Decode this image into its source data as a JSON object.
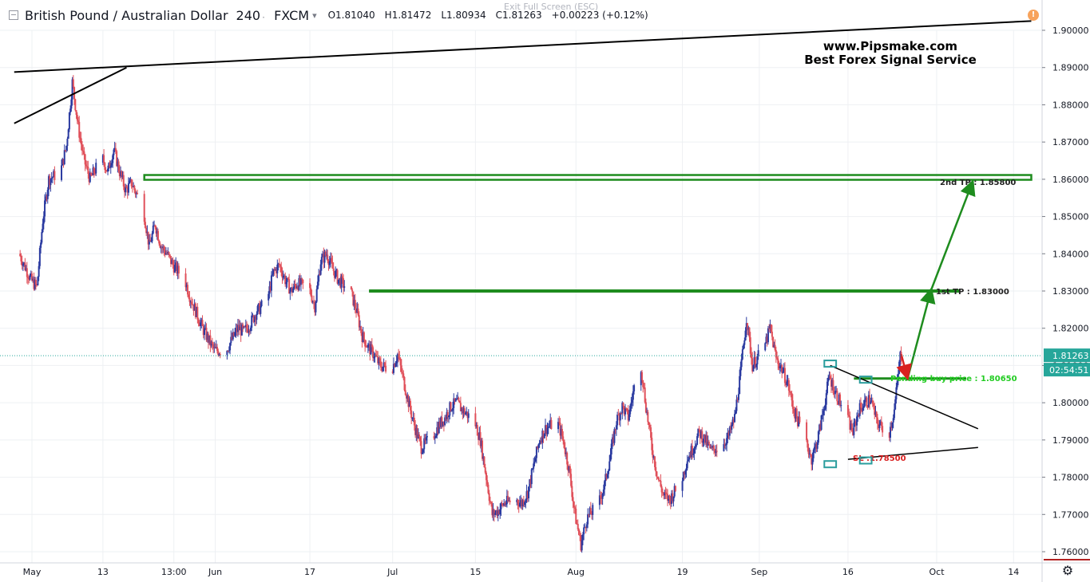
{
  "header": {
    "symbol": "British Pound / Australian Dollar",
    "interval": "240",
    "source": "FXCM",
    "open_label": "O",
    "open": "1.81040",
    "high_label": "H",
    "high": "1.81472",
    "low_label": "L",
    "low": "1.80934",
    "close_label": "C",
    "close": "1.81263",
    "change": "+0.00223 (+0.12%)",
    "exit_full_screen": "Exit Full Screen (ESC)",
    "alert": "!"
  },
  "watermark": {
    "line1": "www.Pipsmake.com",
    "line2": "Best Forex Signal Service"
  },
  "price_axis": {
    "ticks": [
      "1.90000",
      "1.89000",
      "1.88000",
      "1.87000",
      "1.86000",
      "1.85000",
      "1.84000",
      "1.83000",
      "1.82000",
      "1.81000",
      "1.80000",
      "1.79000",
      "1.78000",
      "1.77000",
      "1.76000"
    ],
    "current_price": "1.81263",
    "countdown": "02:54:51"
  },
  "time_axis": {
    "labels": [
      "May",
      "13",
      "13:00",
      "Jun",
      "17",
      "Jul",
      "15",
      "Aug",
      "19",
      "Sep",
      "16",
      "Oct",
      "14"
    ]
  },
  "colors": {
    "up_candle": "#2a3aa0",
    "down_candle": "#e0505a",
    "tp_line": "#1e8c1e",
    "trend_line": "#000000",
    "sl_text": "#d92020",
    "pending_text": "#22cc22",
    "box": "#2a9d9d",
    "price_label_bg": "#26a69a",
    "countdown_bg": "#26a69a",
    "current_price_line": "#26a69a"
  },
  "chart_data": {
    "type": "candlestick",
    "title": "British Pound / Australian Dollar",
    "interval": "240",
    "ylim": [
      1.755,
      1.9075
    ],
    "x_range": [
      "2018-04-28",
      "2018-10-18"
    ],
    "series_path": [
      [
        "2018-04-29",
        1.84
      ],
      [
        "2018-05-01",
        1.833
      ],
      [
        "2018-05-02",
        1.831
      ],
      [
        "2018-05-03",
        1.849
      ],
      [
        "2018-05-04",
        1.86
      ],
      [
        "2018-05-06",
        1.862
      ],
      [
        "2018-05-07",
        1.869
      ],
      [
        "2018-05-08",
        1.886
      ],
      [
        "2018-05-09",
        1.874
      ],
      [
        "2018-05-10",
        1.865
      ],
      [
        "2018-05-11",
        1.86
      ],
      [
        "2018-05-13",
        1.866
      ],
      [
        "2018-05-14",
        1.862
      ],
      [
        "2018-05-15",
        1.868
      ],
      [
        "2018-05-16",
        1.862
      ],
      [
        "2018-05-17",
        1.857
      ],
      [
        "2018-05-18",
        1.859
      ],
      [
        "2018-05-20",
        1.852
      ],
      [
        "2018-05-21",
        1.842
      ],
      [
        "2018-05-22",
        1.848
      ],
      [
        "2018-05-23",
        1.842
      ],
      [
        "2018-05-24",
        1.84
      ],
      [
        "2018-05-25",
        1.837
      ],
      [
        "2018-05-27",
        1.833
      ],
      [
        "2018-05-28",
        1.828
      ],
      [
        "2018-05-29",
        1.824
      ],
      [
        "2018-05-30",
        1.82
      ],
      [
        "2018-05-31",
        1.817
      ],
      [
        "2018-06-01",
        1.814
      ],
      [
        "2018-06-03",
        1.814
      ],
      [
        "2018-06-04",
        1.817
      ],
      [
        "2018-06-05",
        1.82
      ],
      [
        "2018-06-06",
        1.819
      ],
      [
        "2018-06-07",
        1.821
      ],
      [
        "2018-06-08",
        1.824
      ],
      [
        "2018-06-10",
        1.828
      ],
      [
        "2018-06-11",
        1.835
      ],
      [
        "2018-06-12",
        1.837
      ],
      [
        "2018-06-13",
        1.833
      ],
      [
        "2018-06-14",
        1.83
      ],
      [
        "2018-06-15",
        1.832
      ],
      [
        "2018-06-17",
        1.831
      ],
      [
        "2018-06-18",
        1.826
      ],
      [
        "2018-06-19",
        1.838
      ],
      [
        "2018-06-20",
        1.84
      ],
      [
        "2018-06-21",
        1.836
      ],
      [
        "2018-06-22",
        1.833
      ],
      [
        "2018-06-24",
        1.83
      ],
      [
        "2018-06-25",
        1.825
      ],
      [
        "2018-06-26",
        1.818
      ],
      [
        "2018-06-27",
        1.815
      ],
      [
        "2018-06-28",
        1.813
      ],
      [
        "2018-06-29",
        1.81
      ],
      [
        "2018-07-01",
        1.809
      ],
      [
        "2018-07-02",
        1.813
      ],
      [
        "2018-07-03",
        1.806
      ],
      [
        "2018-07-04",
        1.799
      ],
      [
        "2018-07-05",
        1.793
      ],
      [
        "2018-07-06",
        1.788
      ],
      [
        "2018-07-08",
        1.791
      ],
      [
        "2018-07-09",
        1.794
      ],
      [
        "2018-07-10",
        1.796
      ],
      [
        "2018-07-11",
        1.799
      ],
      [
        "2018-07-12",
        1.8
      ],
      [
        "2018-07-13",
        1.798
      ],
      [
        "2018-07-15",
        1.795
      ],
      [
        "2018-07-16",
        1.79
      ],
      [
        "2018-07-17",
        1.78
      ],
      [
        "2018-07-18",
        1.77
      ],
      [
        "2018-07-19",
        1.771
      ],
      [
        "2018-07-20",
        1.773
      ],
      [
        "2018-07-22",
        1.774
      ],
      [
        "2018-07-23",
        1.773
      ],
      [
        "2018-07-24",
        1.776
      ],
      [
        "2018-07-25",
        1.783
      ],
      [
        "2018-07-26",
        1.79
      ],
      [
        "2018-07-27",
        1.793
      ],
      [
        "2018-07-29",
        1.795
      ],
      [
        "2018-07-30",
        1.79
      ],
      [
        "2018-07-31",
        1.782
      ],
      [
        "2018-08-01",
        1.77
      ],
      [
        "2018-08-02",
        1.762
      ],
      [
        "2018-08-03",
        1.769
      ],
      [
        "2018-08-05",
        1.773
      ],
      [
        "2018-08-06",
        1.778
      ],
      [
        "2018-08-07",
        1.786
      ],
      [
        "2018-08-08",
        1.795
      ],
      [
        "2018-08-09",
        1.799
      ],
      [
        "2018-08-10",
        1.796
      ],
      [
        "2018-08-12",
        1.812
      ],
      [
        "2018-08-13",
        1.799
      ],
      [
        "2018-08-14",
        1.788
      ],
      [
        "2018-08-15",
        1.78
      ],
      [
        "2018-08-16",
        1.775
      ],
      [
        "2018-08-17",
        1.774
      ],
      [
        "2018-08-19",
        1.779
      ],
      [
        "2018-08-20",
        1.785
      ],
      [
        "2018-08-21",
        1.788
      ],
      [
        "2018-08-22",
        1.792
      ],
      [
        "2018-08-23",
        1.79
      ],
      [
        "2018-08-24",
        1.787
      ],
      [
        "2018-08-26",
        1.789
      ],
      [
        "2018-08-27",
        1.791
      ],
      [
        "2018-08-28",
        1.796
      ],
      [
        "2018-08-29",
        1.808
      ],
      [
        "2018-08-30",
        1.823
      ],
      [
        "2018-08-31",
        1.81
      ],
      [
        "2018-09-02",
        1.815
      ],
      [
        "2018-09-03",
        1.82
      ],
      [
        "2018-09-04",
        1.812
      ],
      [
        "2018-09-05",
        1.809
      ],
      [
        "2018-09-06",
        1.805
      ],
      [
        "2018-09-07",
        1.798
      ],
      [
        "2018-09-09",
        1.79
      ],
      [
        "2018-09-10",
        1.785
      ],
      [
        "2018-09-11",
        1.79
      ],
      [
        "2018-09-12",
        1.798
      ],
      [
        "2018-09-13",
        1.807
      ],
      [
        "2018-09-14",
        1.803
      ],
      [
        "2018-09-16",
        1.796
      ],
      [
        "2018-09-17",
        1.792
      ],
      [
        "2018-09-18",
        1.798
      ],
      [
        "2018-09-19",
        1.8
      ],
      [
        "2018-09-20",
        1.801
      ],
      [
        "2018-09-21",
        1.795
      ],
      [
        "2018-09-23",
        1.791
      ],
      [
        "2018-09-24",
        1.798
      ],
      [
        "2018-09-25",
        1.8126
      ]
    ],
    "drawings": {
      "upper_trendline": [
        [
          "2018-04-28",
          1.8888
        ],
        [
          "2018-10-17",
          1.9025
        ]
      ],
      "rising_support": [
        [
          "2018-04-28",
          1.875
        ],
        [
          "2018-05-17",
          1.89
        ]
      ],
      "tp2_box": {
        "from": "2018-05-20",
        "to": "2018-10-17",
        "price_top": 1.8605,
        "price_bottom": 1.8595
      },
      "tp2_label": {
        "text": "2nd TP : 1.85800",
        "price": 1.858
      },
      "tp1_line": {
        "from": "2018-06-27",
        "to": "2018-10-05",
        "price": 1.83
      },
      "tp1_label": {
        "text": "1st TP : 1.83000",
        "price": 1.83
      },
      "pending_line": {
        "from": "2018-09-17",
        "to": "2018-10-06",
        "price": 1.8065
      },
      "pending_label": {
        "text": "Pending buy price : 1.80650",
        "price": 1.8065
      },
      "sl_line": [
        [
          "2018-09-16",
          1.7848
        ],
        [
          "2018-10-08",
          1.788
        ]
      ],
      "sl_label": {
        "text": "SL :1.78500",
        "price": 1.785
      },
      "falling_line": [
        [
          "2018-09-13",
          1.81
        ],
        [
          "2018-10-08",
          1.793
        ]
      ],
      "arrow_up": [
        [
          "2018-09-26",
          1.806
        ],
        [
          "2018-09-30",
          1.83
        ],
        [
          "2018-10-07",
          1.859
        ]
      ],
      "arrow_down": [
        [
          "2018-09-25",
          1.813
        ],
        [
          "2018-09-26",
          1.807
        ]
      ],
      "boxes": [
        {
          "from": "2018-09-12",
          "to": "2018-09-14",
          "price": 1.8105
        },
        {
          "from": "2018-09-18",
          "to": "2018-09-20",
          "price": 1.8062
        },
        {
          "from": "2018-09-12",
          "to": "2018-09-14",
          "price": 1.7835
        },
        {
          "from": "2018-09-18",
          "to": "2018-09-20",
          "price": 1.7845
        }
      ]
    }
  }
}
